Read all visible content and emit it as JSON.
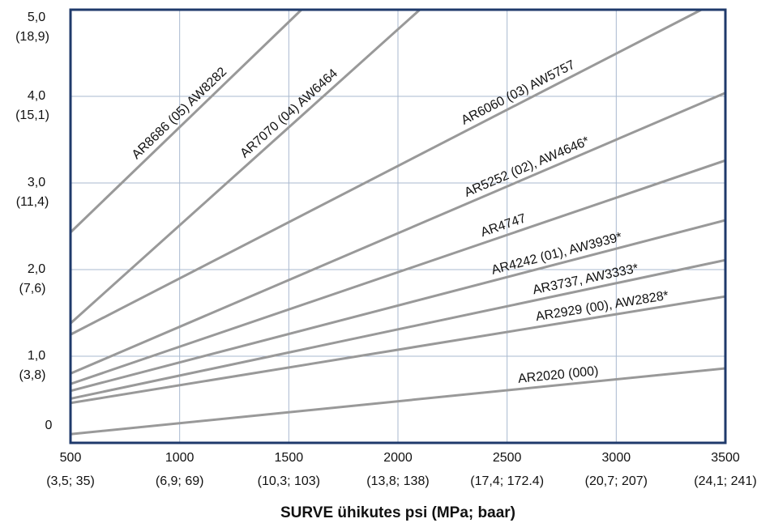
{
  "chart_data": {
    "type": "line",
    "xlabel": "SURVE ühikutes psi (MPa; baar)",
    "xlim": [
      500,
      3500
    ],
    "ylim": [
      0,
      5
    ],
    "xticks": [
      {
        "value": 500,
        "label": "500",
        "sublabel": "(3,5; 35)"
      },
      {
        "value": 1000,
        "label": "1000",
        "sublabel": "(6,9; 69)"
      },
      {
        "value": 1500,
        "label": "1500",
        "sublabel": "(10,3; 103)"
      },
      {
        "value": 2000,
        "label": "2000",
        "sublabel": "(13,8; 138)"
      },
      {
        "value": 2500,
        "label": "2500",
        "sublabel": "(17,4; 172.4)"
      },
      {
        "value": 3000,
        "label": "3000",
        "sublabel": "(20,7; 207)"
      },
      {
        "value": 3500,
        "label": "3500",
        "sublabel": "(24,1; 241)"
      }
    ],
    "yticks": [
      0,
      {
        "value": 1,
        "label": "1,0",
        "sublabel": "(3,8)"
      },
      {
        "value": 2,
        "label": "2,0",
        "sublabel": "(7,6)"
      },
      {
        "value": 3,
        "label": "3,0",
        "sublabel": "(11,4)"
      },
      {
        "value": 4,
        "label": "4,0",
        "sublabel": "(15,1)"
      },
      {
        "value": 5,
        "label": "5,0",
        "sublabel": "(18,9)"
      }
    ],
    "grid": true,
    "series": [
      {
        "name": "AR2020 (000)",
        "color": "#999999",
        "x": [
          500,
          3500
        ],
        "values": [
          0.1,
          0.86
        ]
      },
      {
        "name": "AR2929 (00), AW2828*",
        "color": "#999999",
        "x": [
          500,
          3500
        ],
        "values": [
          0.46,
          1.69
        ]
      },
      {
        "name": "AR3737, AW3333*",
        "color": "#999999",
        "x": [
          500,
          3500
        ],
        "values": [
          0.51,
          2.11
        ]
      },
      {
        "name": "AR4242 (01), AW3939*",
        "color": "#999999",
        "x": [
          500,
          3500
        ],
        "values": [
          0.6,
          2.57
        ]
      },
      {
        "name": "AR4747",
        "color": "#999999",
        "x": [
          500,
          3500
        ],
        "values": [
          0.68,
          3.26
        ]
      },
      {
        "name": "AR5252 (02), AW4646*",
        "color": "#999999",
        "x": [
          500,
          3500
        ],
        "values": [
          0.8,
          4.04
        ]
      },
      {
        "name": "AR6060 (03) AW5757",
        "color": "#999999",
        "x": [
          500,
          3390
        ],
        "values": [
          1.25,
          5.0
        ]
      },
      {
        "name": "AR7070 (04) AW6464",
        "color": "#999999",
        "x": [
          500,
          2100
        ],
        "values": [
          1.38,
          5.0
        ]
      },
      {
        "name": "AR8686 (05) AW8282",
        "color": "#999999",
        "x": [
          500,
          1558
        ],
        "values": [
          2.43,
          5.0
        ]
      }
    ]
  }
}
